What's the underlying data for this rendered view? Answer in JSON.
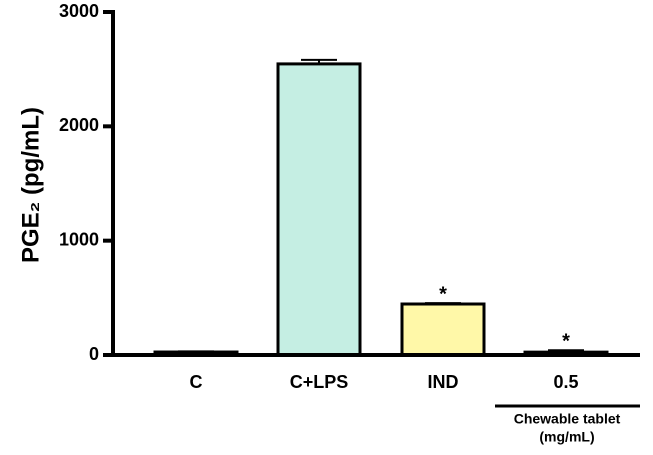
{
  "chart_data": {
    "type": "bar",
    "ylabel": "PGE₂ (pg/mL)",
    "categories": [
      "C",
      "C+LPS",
      "IND",
      "0.5"
    ],
    "series": [
      {
        "name": "PGE2",
        "values": [
          26,
          2546,
          446,
          25
        ],
        "errors": [
          6,
          35,
          8,
          16
        ],
        "colors": [
          "#ffffff",
          "#c5eee3",
          "#fff8a8",
          "#ffffff"
        ]
      }
    ],
    "significance": [
      null,
      null,
      "*",
      "*"
    ],
    "group_label": [
      "Chewable tablet",
      "(mg/mL)"
    ],
    "ylim": [
      0,
      3000
    ],
    "yticks": [
      0,
      1000,
      2000,
      3000
    ]
  }
}
